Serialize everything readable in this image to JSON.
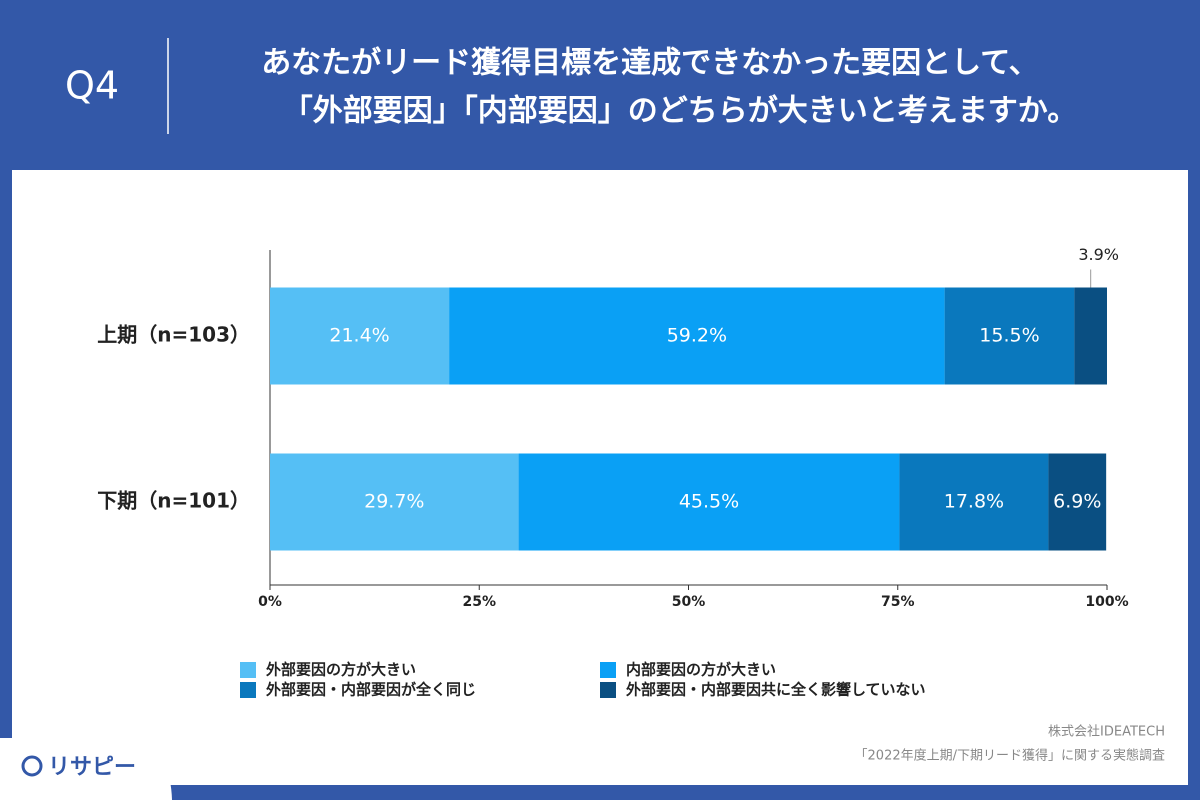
{
  "chart_data": {
    "type": "stacked-barh",
    "header_label": "Q4",
    "title_lines": [
      "あなたがリード獲得目標を達成できなかった要因として、",
      "「外部要因」「内部要因」のどちらが大きいと考えますか。"
    ],
    "categories": [
      "上期（n=103）",
      "下期（n=101）"
    ],
    "series": [
      {
        "name": "外部要因の方が大きい",
        "color": "#55bff5",
        "values": [
          21.4,
          29.7
        ],
        "value_labels": [
          "21.4%",
          "29.7%"
        ]
      },
      {
        "name": "内部要因の方が大きい",
        "color": "#0aa0f5",
        "values": [
          59.2,
          45.5
        ],
        "value_labels": [
          "59.2%",
          "45.5%"
        ]
      },
      {
        "name": "外部要因・内部要因が全く同じ",
        "color": "#0a78bd",
        "values": [
          15.5,
          17.8
        ],
        "value_labels": [
          "15.5%",
          "17.8%"
        ]
      },
      {
        "name": "外部要因・内部要因共に全く影響していない",
        "color": "#0a4f82",
        "values": [
          3.9,
          6.9
        ],
        "value_labels": [
          "3.9%",
          "6.9%"
        ]
      }
    ],
    "xlim": [
      0,
      100
    ],
    "xticks": [
      {
        "value": 0,
        "label": "0%"
      },
      {
        "value": 25,
        "label": "25%"
      },
      {
        "value": 50,
        "label": "50%"
      },
      {
        "value": 75,
        "label": "75%"
      },
      {
        "value": 100,
        "label": "100%"
      }
    ],
    "source_lines": [
      "株式会社IDEATECH",
      "「2022年度上期/下期リード獲得」に関する実態調査"
    ],
    "logo": "リサピー"
  }
}
